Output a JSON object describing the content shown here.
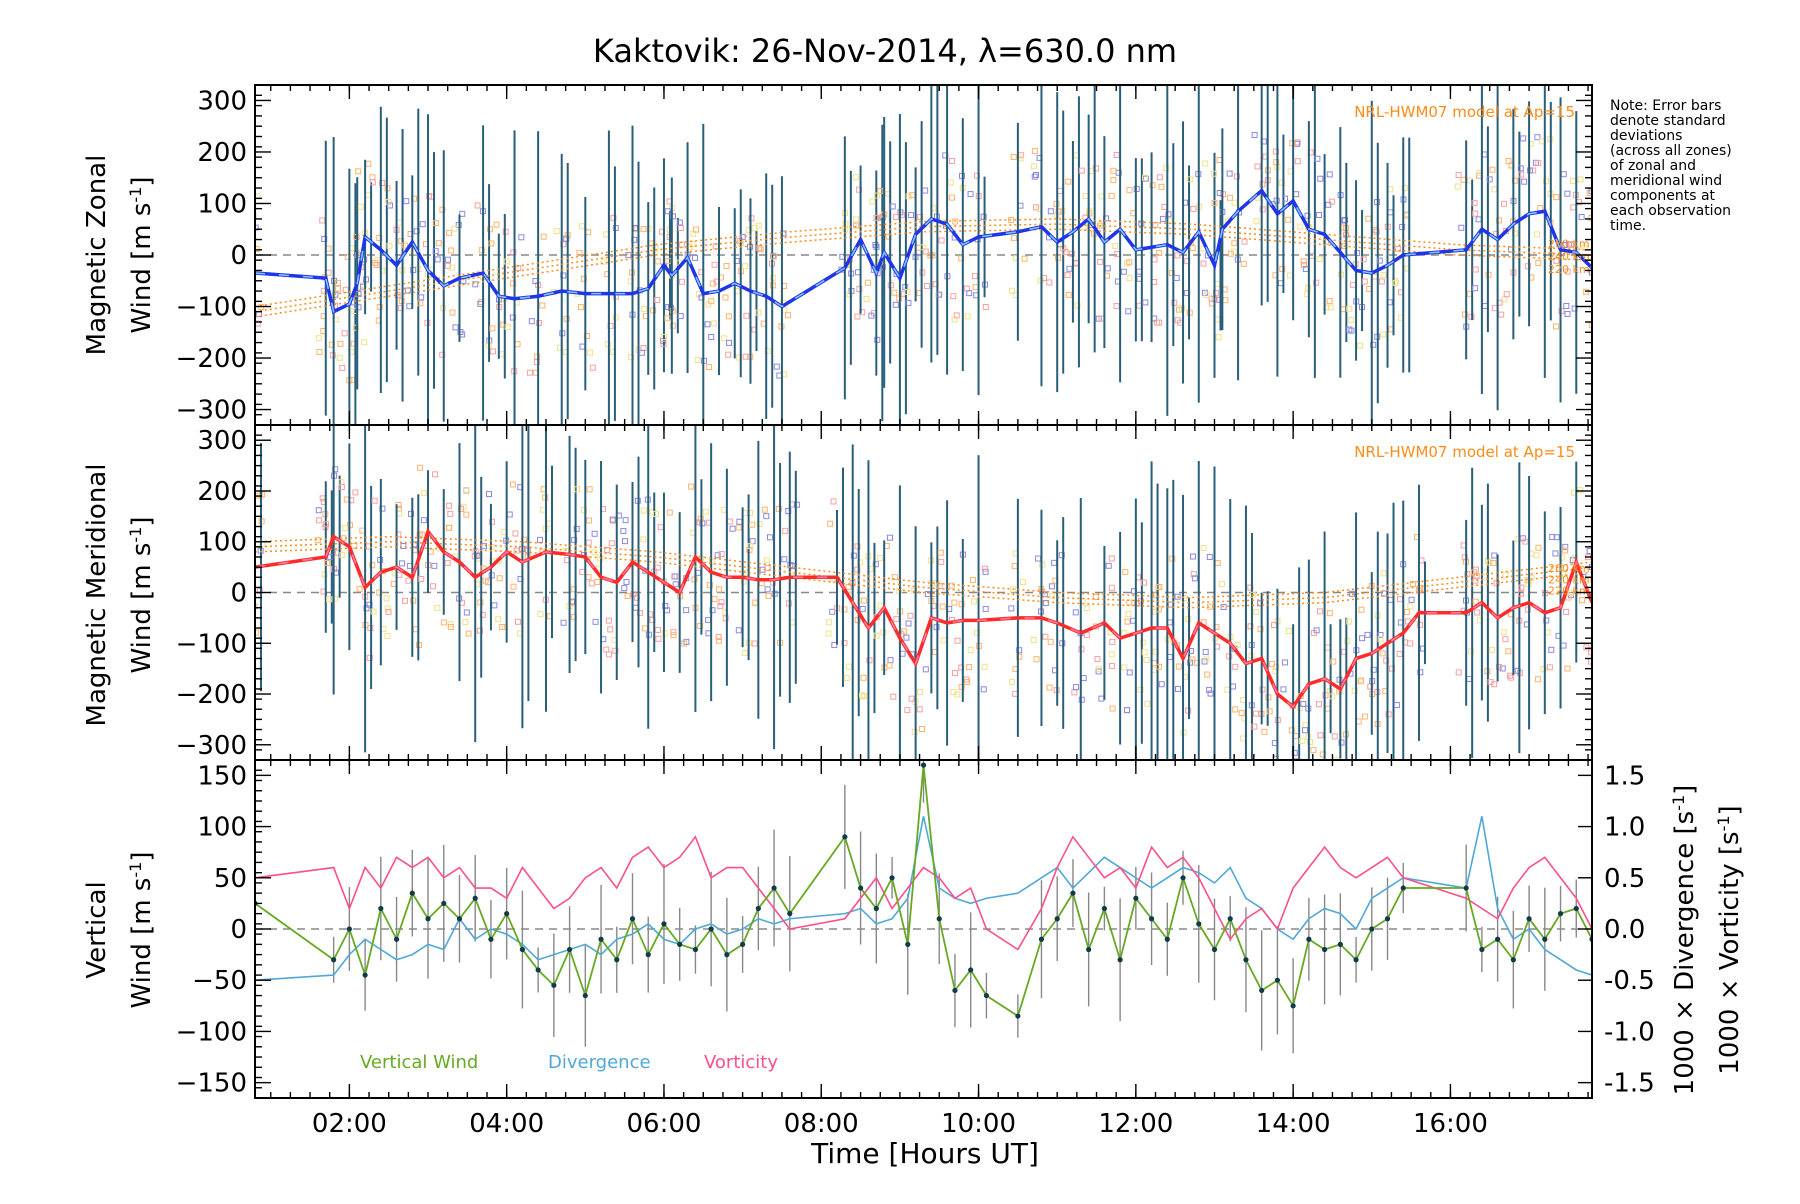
{
  "colors": {
    "zonal_line": "#1f35e8",
    "zonal_overlay": "#7ec4ff",
    "meridional_line": "#ff2a2a",
    "meridional_overlay": "#ff7a9a",
    "model": "#ff8c1a",
    "vertical": "#66aa22",
    "divergence": "#4fa8d8",
    "vorticity": "#ff4f8b",
    "errorbar": "#2a5f7a",
    "scatter_blue": "#8a8ae0",
    "scatter_orange": "#ffb36b",
    "scatter_yellow": "#f2e08a",
    "scatter_pink": "#f6a0a0"
  },
  "title": "Kaktovik: 26-Nov-2014, λ=630.0 nm",
  "note": [
    "Note: Error bars",
    "denote standard",
    "deviations",
    "(across all zones)",
    "of zonal and",
    "meridional wind",
    "components at",
    "each observation",
    "time."
  ],
  "x_axis": {
    "label": "Time [Hours UT]",
    "ticks": [
      "02:00",
      "04:00",
      "06:00",
      "08:00",
      "10:00",
      "12:00",
      "14:00",
      "16:00"
    ]
  },
  "panels": {
    "zonal": {
      "ylabel_line1": "Magnetic Zonal",
      "ylabel_line2": "Wind [m s",
      "ylabel_sup": "-1",
      "ylabel_close": "]",
      "model_label": "NRL-HWM07 model at Ap=15",
      "model_alt_labels": [
        "260 km",
        "240 km",
        "220 km"
      ]
    },
    "meridional": {
      "ylabel_line1": "Magnetic Meridional",
      "ylabel_line2": "Wind [m s",
      "ylabel_sup": "-1",
      "ylabel_close": "]",
      "model_label": "NRL-HWM07 model at Ap=15",
      "model_alt_labels": [
        "260 km",
        "240 km",
        "220 km"
      ]
    },
    "vertical": {
      "ylabel_line1": "Vertical",
      "ylabel_line2": "Wind [m s",
      "ylabel_sup": "-1",
      "ylabel_close": "]",
      "right_label_div": "1000 × Divergence [s",
      "right_label_vor": "1000 × Vorticity [s",
      "right_label_sup": "-1",
      "right_label_close": "]",
      "legend": [
        "Vertical Wind",
        "Divergence",
        "Vorticity"
      ]
    }
  },
  "chart_data": [
    {
      "type": "line",
      "name": "zonal",
      "xlim": [
        0.8,
        17.8
      ],
      "ylim": [
        -330,
        330
      ],
      "yticks": [
        -300,
        -200,
        -100,
        0,
        100,
        200,
        300
      ],
      "x": [
        0.8,
        1.7,
        1.8,
        2.0,
        2.1,
        2.2,
        2.4,
        2.6,
        2.8,
        3.0,
        3.2,
        3.4,
        3.7,
        3.9,
        4.1,
        4.4,
        4.7,
        5.0,
        5.3,
        5.6,
        5.8,
        6.0,
        6.1,
        6.3,
        6.5,
        6.7,
        6.9,
        7.1,
        7.3,
        7.5,
        8.3,
        8.5,
        8.7,
        8.8,
        9.0,
        9.2,
        9.4,
        9.6,
        9.8,
        10.0,
        10.5,
        10.8,
        11.0,
        11.2,
        11.4,
        11.6,
        11.8,
        12.0,
        12.2,
        12.4,
        12.6,
        12.8,
        13.0,
        13.1,
        13.3,
        13.6,
        13.8,
        14.0,
        14.2,
        14.4,
        14.6,
        14.8,
        15.0,
        15.2,
        15.4,
        16.2,
        16.4,
        16.6,
        16.8,
        17.0,
        17.2,
        17.4,
        17.6,
        17.8
      ],
      "series": [
        {
          "values": [
            -35,
            -45,
            -110,
            -95,
            -55,
            35,
            10,
            -20,
            25,
            -30,
            -60,
            -45,
            -35,
            -80,
            -85,
            -80,
            -70,
            -75,
            -75,
            -75,
            -65,
            -20,
            -40,
            -5,
            -75,
            -70,
            -55,
            -70,
            -80,
            -100,
            -25,
            30,
            -35,
            5,
            -45,
            40,
            70,
            60,
            20,
            35,
            45,
            55,
            25,
            45,
            70,
            25,
            50,
            10,
            15,
            20,
            5,
            45,
            -20,
            50,
            85,
            125,
            80,
            105,
            50,
            40,
            5,
            -30,
            -35,
            -20,
            0,
            10,
            50,
            30,
            60,
            80,
            85,
            10,
            5,
            -25
          ]
        }
      ],
      "model": [
        {
          "alt": "260 km",
          "values": [
            -100,
            -60,
            -20,
            20,
            45,
            65,
            70,
            60,
            40,
            20,
            10
          ]
        },
        {
          "alt": "240 km",
          "values": [
            -110,
            -70,
            -30,
            10,
            35,
            55,
            60,
            50,
            30,
            10,
            0
          ]
        },
        {
          "alt": "220 km",
          "values": [
            -120,
            -80,
            -40,
            0,
            25,
            45,
            50,
            40,
            20,
            0,
            -10
          ]
        }
      ],
      "model_x": [
        0.8,
        2.5,
        4.2,
        5.9,
        7.6,
        9.3,
        11.0,
        12.7,
        14.4,
        16.1,
        17.8
      ]
    },
    {
      "type": "line",
      "name": "meridional",
      "xlim": [
        0.8,
        17.8
      ],
      "ylim": [
        -330,
        330
      ],
      "yticks": [
        -300,
        -200,
        -100,
        0,
        100,
        200,
        300
      ],
      "x": [
        0.8,
        1.7,
        1.8,
        2.0,
        2.2,
        2.4,
        2.6,
        2.8,
        3.0,
        3.2,
        3.4,
        3.6,
        3.8,
        4.0,
        4.2,
        4.5,
        4.8,
        5.0,
        5.2,
        5.4,
        5.6,
        5.8,
        6.0,
        6.2,
        6.4,
        6.6,
        6.8,
        7.0,
        7.2,
        7.4,
        7.6,
        8.2,
        8.4,
        8.6,
        8.8,
        9.0,
        9.2,
        9.4,
        9.6,
        9.8,
        10.0,
        10.5,
        10.8,
        11.0,
        11.3,
        11.6,
        11.8,
        12.0,
        12.2,
        12.4,
        12.6,
        12.8,
        13.0,
        13.2,
        13.4,
        13.6,
        13.8,
        14.0,
        14.2,
        14.4,
        14.6,
        14.8,
        15.0,
        15.2,
        15.4,
        15.6,
        16.2,
        16.4,
        16.6,
        16.8,
        17.0,
        17.2,
        17.4,
        17.6,
        17.8
      ],
      "series": [
        {
          "values": [
            50,
            70,
            110,
            90,
            10,
            40,
            50,
            30,
            120,
            80,
            60,
            30,
            50,
            80,
            60,
            80,
            75,
            70,
            30,
            20,
            60,
            40,
            20,
            0,
            70,
            40,
            30,
            30,
            25,
            25,
            30,
            30,
            -20,
            -70,
            -30,
            -90,
            -140,
            -50,
            -60,
            -55,
            -55,
            -50,
            -50,
            -60,
            -80,
            -60,
            -90,
            -80,
            -70,
            -70,
            -130,
            -60,
            -80,
            -100,
            -140,
            -130,
            -200,
            -225,
            -180,
            -170,
            -190,
            -130,
            -120,
            -100,
            -80,
            -40,
            -40,
            -20,
            -50,
            -30,
            -20,
            -40,
            -30,
            60,
            -20
          ]
        }
      ],
      "model": [
        {
          "alt": "260 km",
          "values": [
            100,
            110,
            100,
            80,
            50,
            20,
            0,
            -10,
            0,
            30,
            60
          ]
        },
        {
          "alt": "240 km",
          "values": [
            90,
            100,
            90,
            70,
            40,
            10,
            -10,
            -20,
            -10,
            20,
            50
          ]
        },
        {
          "alt": "220 km",
          "values": [
            80,
            90,
            80,
            60,
            30,
            0,
            -20,
            -30,
            -20,
            10,
            40
          ]
        }
      ],
      "model_x": [
        0.8,
        2.5,
        4.2,
        5.9,
        7.6,
        9.3,
        11.0,
        12.7,
        14.4,
        16.1,
        17.8
      ]
    },
    {
      "type": "line",
      "name": "vertical",
      "xlim": [
        0.8,
        17.8
      ],
      "ylim": [
        -165,
        165
      ],
      "yticks": [
        -150,
        -100,
        -50,
        0,
        50,
        100,
        150
      ],
      "right_ylim": [
        -1.65,
        1.65
      ],
      "right_yticks": [
        -1.5,
        -1.0,
        -0.5,
        0.0,
        0.5,
        1.0,
        1.5
      ],
      "x": [
        0.8,
        1.8,
        2.0,
        2.2,
        2.4,
        2.6,
        2.8,
        3.0,
        3.2,
        3.4,
        3.6,
        3.8,
        4.0,
        4.2,
        4.4,
        4.6,
        4.8,
        5.0,
        5.2,
        5.4,
        5.6,
        5.8,
        6.0,
        6.2,
        6.4,
        6.6,
        6.8,
        7.0,
        7.2,
        7.4,
        7.6,
        8.3,
        8.5,
        8.7,
        8.9,
        9.1,
        9.3,
        9.5,
        9.7,
        9.9,
        10.1,
        10.5,
        10.8,
        11.0,
        11.2,
        11.4,
        11.6,
        11.8,
        12.0,
        12.2,
        12.4,
        12.6,
        12.8,
        13.0,
        13.2,
        13.4,
        13.6,
        13.8,
        14.0,
        14.2,
        14.4,
        14.6,
        14.8,
        15.0,
        15.2,
        15.4,
        16.2,
        16.4,
        16.6,
        16.8,
        17.0,
        17.2,
        17.4,
        17.6,
        17.8
      ],
      "series": [
        {
          "name": "Vertical Wind",
          "values": [
            25,
            -30,
            0,
            -45,
            20,
            -10,
            35,
            10,
            25,
            10,
            30,
            -10,
            15,
            -20,
            -40,
            -55,
            -20,
            -65,
            -10,
            -30,
            10,
            -25,
            5,
            -15,
            -20,
            0,
            -25,
            -15,
            20,
            40,
            15,
            90,
            40,
            20,
            50,
            -15,
            160,
            10,
            -60,
            -40,
            -65,
            -85,
            -10,
            10,
            35,
            -20,
            20,
            -30,
            30,
            10,
            -10,
            50,
            5,
            -20,
            10,
            -30,
            -60,
            -50,
            -75,
            -10,
            -20,
            -15,
            -30,
            0,
            10,
            40,
            40,
            -20,
            -10,
            -30,
            10,
            -10,
            15,
            20,
            -10
          ]
        },
        {
          "name": "Divergence",
          "values": [
            -0.5,
            -0.45,
            -0.25,
            -0.1,
            -0.2,
            -0.3,
            -0.25,
            -0.15,
            -0.2,
            0.1,
            -0.1,
            0.0,
            -0.05,
            -0.15,
            -0.3,
            -0.25,
            -0.2,
            -0.15,
            -0.25,
            -0.1,
            -0.05,
            0.05,
            -0.1,
            -0.15,
            0.0,
            0.05,
            -0.05,
            0.0,
            0.1,
            0.05,
            0.1,
            0.15,
            0.2,
            0.05,
            0.1,
            0.3,
            1.1,
            0.4,
            0.3,
            0.25,
            0.3,
            0.35,
            0.5,
            0.6,
            0.4,
            0.55,
            0.7,
            0.6,
            0.5,
            0.4,
            0.5,
            0.6,
            0.55,
            0.45,
            0.6,
            0.3,
            0.2,
            0.0,
            -0.1,
            0.1,
            0.2,
            0.15,
            0.0,
            0.3,
            0.4,
            0.5,
            0.4,
            1.1,
            0.2,
            -0.1,
            0.0,
            -0.2,
            -0.3,
            -0.4,
            -0.45
          ]
        },
        {
          "name": "Vorticity",
          "values": [
            0.5,
            0.6,
            0.2,
            0.6,
            0.4,
            0.7,
            0.6,
            0.7,
            0.5,
            0.6,
            0.4,
            0.4,
            0.3,
            0.6,
            0.4,
            0.2,
            0.3,
            0.5,
            0.6,
            0.4,
            0.7,
            0.8,
            0.6,
            0.7,
            0.9,
            0.5,
            0.6,
            0.6,
            0.4,
            0.2,
            0.0,
            0.1,
            0.3,
            0.5,
            0.2,
            0.4,
            0.6,
            0.5,
            0.3,
            0.4,
            0.0,
            -0.2,
            0.2,
            0.6,
            0.9,
            0.7,
            0.5,
            0.6,
            0.4,
            0.8,
            0.6,
            0.7,
            0.5,
            0.2,
            -0.1,
            0.1,
            0.2,
            0.0,
            0.4,
            0.6,
            0.8,
            0.6,
            0.5,
            0.6,
            0.7,
            0.5,
            0.3,
            0.2,
            0.1,
            0.4,
            0.6,
            0.7,
            0.5,
            0.3,
            0.0
          ]
        }
      ]
    }
  ]
}
